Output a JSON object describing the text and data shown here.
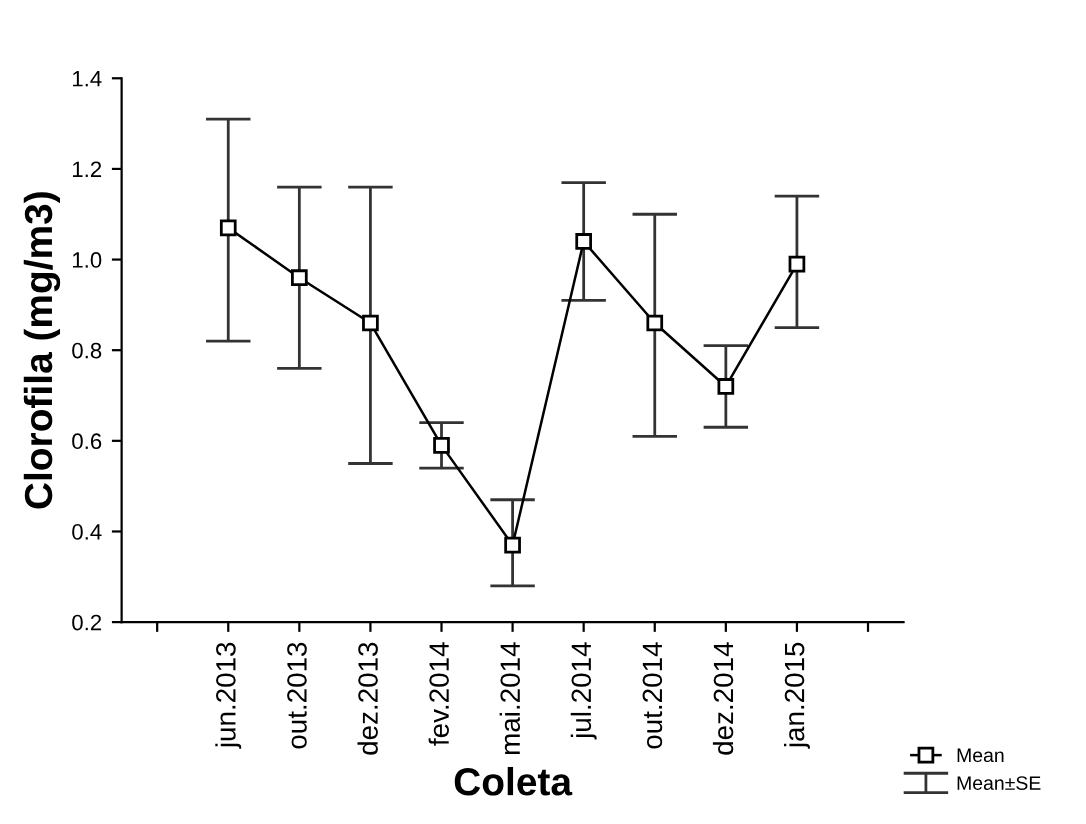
{
  "chart_data": {
    "type": "line",
    "xlabel": "Coleta",
    "ylabel": "Clorofila (mg/m3)",
    "categories": [
      "jun.2013",
      "out.2013",
      "dez.2013",
      "fev.2014",
      "mai.2014",
      "jul.2014",
      "out.2014",
      "dez.2014",
      "jan.2015"
    ],
    "series": [
      {
        "name": "Mean",
        "color": "#000000",
        "values": [
          1.07,
          0.96,
          0.86,
          0.59,
          0.37,
          1.04,
          0.86,
          0.72,
          0.99
        ],
        "errors": [
          [
            0.82,
            1.31
          ],
          [
            0.76,
            1.16
          ],
          [
            0.55,
            1.16
          ],
          [
            0.54,
            0.64
          ],
          [
            0.28,
            0.47
          ],
          [
            0.91,
            1.17
          ],
          [
            0.61,
            1.1
          ],
          [
            0.63,
            0.81
          ],
          [
            0.85,
            1.14
          ]
        ]
      }
    ],
    "annotations": [
      "Mean±SE"
    ],
    "ylim": [
      0.2,
      1.4
    ],
    "yticks": [
      0.2,
      0.4,
      0.6,
      0.8,
      {
        "value": 1,
        "label": "1.0"
      },
      1.2,
      1.4
    ],
    "grid": false,
    "legend": "bottom right",
    "marker": "square",
    "line_style": "solid"
  }
}
